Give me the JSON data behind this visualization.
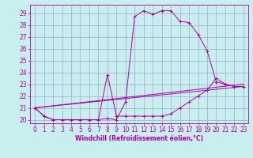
{
  "xlabel": "Windchill (Refroidissement éolien,°C)",
  "bg_color": "#c8eef0",
  "line_color": "#aa00aa",
  "grid_color": "#9999bb",
  "xlim": [
    -0.5,
    23.5
  ],
  "ylim": [
    19.7,
    29.7
  ],
  "xticks": [
    0,
    1,
    2,
    3,
    4,
    5,
    6,
    7,
    8,
    9,
    10,
    11,
    12,
    13,
    14,
    15,
    16,
    17,
    18,
    19,
    20,
    21,
    22,
    23
  ],
  "yticks": [
    20,
    21,
    22,
    23,
    24,
    25,
    26,
    27,
    28,
    29
  ],
  "line1_x": [
    0,
    1,
    2,
    3,
    4,
    5,
    6,
    7,
    8,
    9,
    10,
    11,
    12,
    13,
    14,
    15,
    16,
    17,
    18,
    19,
    20,
    21,
    22,
    23
  ],
  "line1_y": [
    21.0,
    20.3,
    20.0,
    20.0,
    20.0,
    20.0,
    20.0,
    20.0,
    20.1,
    20.0,
    21.5,
    28.7,
    29.2,
    28.9,
    29.2,
    29.2,
    28.3,
    28.2,
    27.2,
    25.8,
    23.2,
    23.0,
    22.8,
    22.8
  ],
  "line2_x": [
    0,
    1,
    2,
    3,
    4,
    5,
    6,
    7,
    8,
    9,
    10,
    11,
    12,
    13,
    14,
    15,
    16,
    17,
    18,
    19,
    20,
    21,
    22,
    23
  ],
  "line2_y": [
    21.0,
    20.3,
    20.0,
    20.0,
    20.0,
    20.0,
    20.0,
    20.0,
    23.8,
    20.3,
    20.3,
    20.3,
    20.3,
    20.3,
    20.3,
    20.5,
    21.0,
    21.5,
    22.0,
    22.5,
    23.5,
    23.0,
    22.8,
    22.8
  ],
  "line3_x": [
    0,
    23
  ],
  "line3_y": [
    21.0,
    22.8
  ],
  "line4_x": [
    0,
    23
  ],
  "line4_y": [
    21.0,
    23.0
  ],
  "tick_fontsize": 5.5,
  "xlabel_fontsize": 5.5
}
